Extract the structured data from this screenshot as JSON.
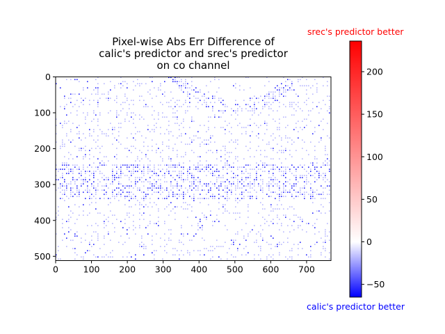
{
  "chart_data": {
    "type": "heatmap",
    "title_lines": [
      "Pixel-wise Abs Err Difference of",
      "calic's predictor and srec's predictor",
      "on co channel"
    ],
    "xlabel": "",
    "ylabel": "",
    "image_width": 768,
    "image_height": 512,
    "x_ticks": [
      0,
      100,
      200,
      300,
      400,
      500,
      600,
      700
    ],
    "y_ticks": [
      0,
      100,
      200,
      300,
      400,
      500
    ],
    "colorbar": {
      "min": -65,
      "max": 236,
      "ticks": [
        -50,
        0,
        50,
        100,
        150,
        200
      ],
      "colormap": "bwr",
      "low_color": "#0000ff",
      "mid_color": "#ffffff",
      "high_color": "#ff0000",
      "top_label": "srec's predictor better",
      "bottom_label": "calic's predictor better"
    },
    "regions": [
      {
        "description_id": "dense-band",
        "y_range": [
          240,
          340
        ]
      },
      {
        "description_id": "arc",
        "center_x": 500,
        "center_y": -130,
        "radius": 210
      }
    ]
  }
}
